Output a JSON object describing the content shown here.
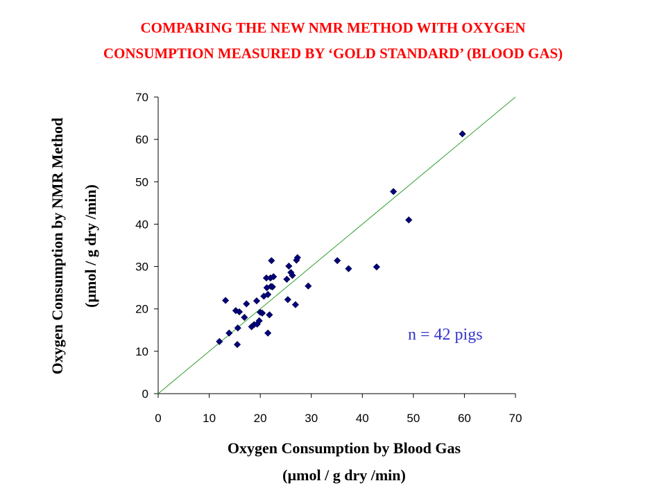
{
  "title_lines": [
    "COMPARING THE NEW NMR METHOD WITH OXYGEN",
    "CONSUMPTION MEASURED BY ‘GOLD STANDARD’ (BLOOD GAS)"
  ],
  "colors": {
    "title": "#ff0000",
    "marker": "#000080",
    "marker_edge": "#000040",
    "identity_line": "#2e9e2e",
    "annotation": "#3333cc"
  },
  "chart_data": {
    "type": "scatter",
    "xlabel_lines": [
      "Oxygen Consumption by Blood Gas",
      "(µmol / g dry /min)"
    ],
    "ylabel_lines": [
      "Oxygen Consumption by NMR Method",
      "(µmol / g dry /min)"
    ],
    "xlim": [
      0,
      70
    ],
    "ylim": [
      0,
      70
    ],
    "xticks": [
      0,
      10,
      20,
      30,
      40,
      50,
      60,
      70
    ],
    "yticks": [
      0,
      10,
      20,
      30,
      40,
      50,
      60,
      70
    ],
    "grid": false,
    "marker": "diamond",
    "reference_line": {
      "type": "identity",
      "from": [
        0,
        0
      ],
      "to": [
        70,
        70
      ]
    },
    "annotation": "n = 42 pigs",
    "points": [
      [
        12.0,
        12.3
      ],
      [
        13.2,
        22.0
      ],
      [
        13.9,
        14.3
      ],
      [
        15.2,
        19.6
      ],
      [
        15.5,
        11.6
      ],
      [
        15.6,
        15.5
      ],
      [
        15.9,
        19.3
      ],
      [
        16.9,
        18.0
      ],
      [
        17.3,
        21.2
      ],
      [
        18.3,
        15.8
      ],
      [
        18.8,
        16.3
      ],
      [
        19.3,
        21.9
      ],
      [
        19.4,
        16.4
      ],
      [
        19.8,
        17.2
      ],
      [
        20.4,
        19.0
      ],
      [
        20.7,
        23.0
      ],
      [
        21.2,
        27.3
      ],
      [
        21.3,
        25.0
      ],
      [
        21.5,
        23.4
      ],
      [
        21.5,
        14.3
      ],
      [
        21.8,
        18.6
      ],
      [
        22.0,
        27.3
      ],
      [
        22.1,
        25.3
      ],
      [
        22.2,
        31.4
      ],
      [
        22.6,
        27.6
      ],
      [
        25.2,
        27.0
      ],
      [
        25.4,
        22.2
      ],
      [
        25.6,
        30.1
      ],
      [
        26.0,
        28.6
      ],
      [
        26.3,
        27.9
      ],
      [
        26.9,
        21.0
      ],
      [
        27.1,
        31.5
      ],
      [
        27.3,
        32.1
      ],
      [
        29.4,
        25.4
      ],
      [
        35.1,
        31.4
      ],
      [
        37.3,
        29.5
      ],
      [
        42.8,
        29.9
      ],
      [
        46.1,
        47.7
      ],
      [
        49.1,
        41.0
      ],
      [
        59.6,
        61.3
      ],
      [
        20.0,
        19.2
      ],
      [
        22.4,
        25.2
      ]
    ]
  }
}
